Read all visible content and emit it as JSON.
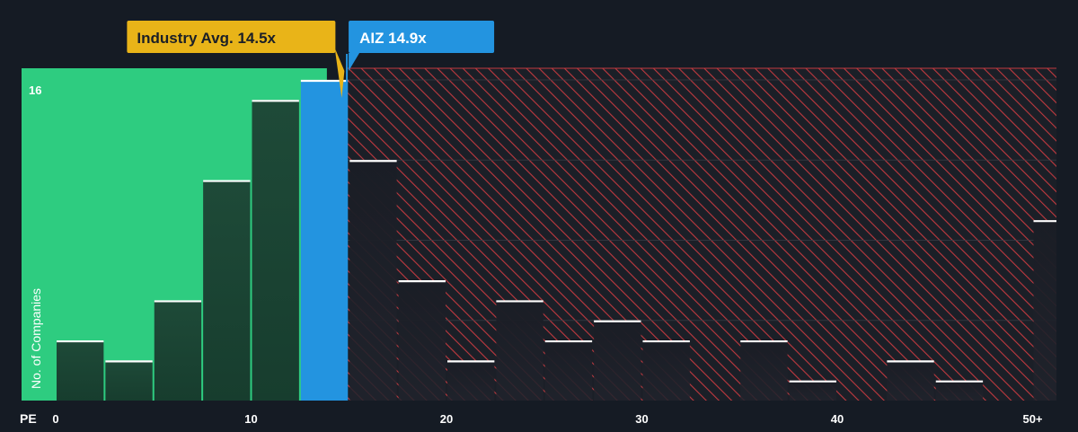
{
  "chart_data": {
    "type": "bar",
    "title": "",
    "xlabel": "PE",
    "ylabel": "No. of Companies",
    "x_ticks": [
      "0",
      "10",
      "20",
      "30",
      "40",
      "50+"
    ],
    "x_tick_values": [
      0,
      10,
      20,
      30,
      40,
      50
    ],
    "y_tick_labels": [
      "16"
    ],
    "ylim": [
      0,
      16
    ],
    "bins": [
      {
        "x0": 0,
        "x1": 2.5,
        "count": 3
      },
      {
        "x0": 2.5,
        "x1": 5,
        "count": 2
      },
      {
        "x0": 5,
        "x1": 7.5,
        "count": 5
      },
      {
        "x0": 7.5,
        "x1": 10,
        "count": 11
      },
      {
        "x0": 10,
        "x1": 12.5,
        "count": 15
      },
      {
        "x0": 12.5,
        "x1": 15,
        "count": 16,
        "highlight": true
      },
      {
        "x0": 15,
        "x1": 17.5,
        "count": 12
      },
      {
        "x0": 17.5,
        "x1": 20,
        "count": 6
      },
      {
        "x0": 20,
        "x1": 22.5,
        "count": 2
      },
      {
        "x0": 22.5,
        "x1": 25,
        "count": 5
      },
      {
        "x0": 25,
        "x1": 27.5,
        "count": 3
      },
      {
        "x0": 27.5,
        "x1": 30,
        "count": 4
      },
      {
        "x0": 30,
        "x1": 32.5,
        "count": 3
      },
      {
        "x0": 35,
        "x1": 37.5,
        "count": 3
      },
      {
        "x0": 37.5,
        "x1": 40,
        "count": 1
      },
      {
        "x0": 42.5,
        "x1": 45,
        "count": 2
      },
      {
        "x0": 45,
        "x1": 47.5,
        "count": 1
      },
      {
        "x0": 50,
        "x1": 51.5,
        "count": 9
      }
    ],
    "industry_avg": {
      "label": "Industry Avg. 14.5x",
      "value": 14.5
    },
    "company": {
      "label": "AIZ 14.9x",
      "value": 14.9
    },
    "colors": {
      "background": "#151b24",
      "green_zone": "#2ecc80",
      "green_bar": "#1e4a38",
      "red_hatch": "#c0393f",
      "company_bar": "#2394e0",
      "industry_badge": "#e9b418",
      "company_badge": "#2394e0",
      "bar_top_line": "#ffffff",
      "grid": "#3a3f48",
      "text": "#ffffff"
    }
  }
}
